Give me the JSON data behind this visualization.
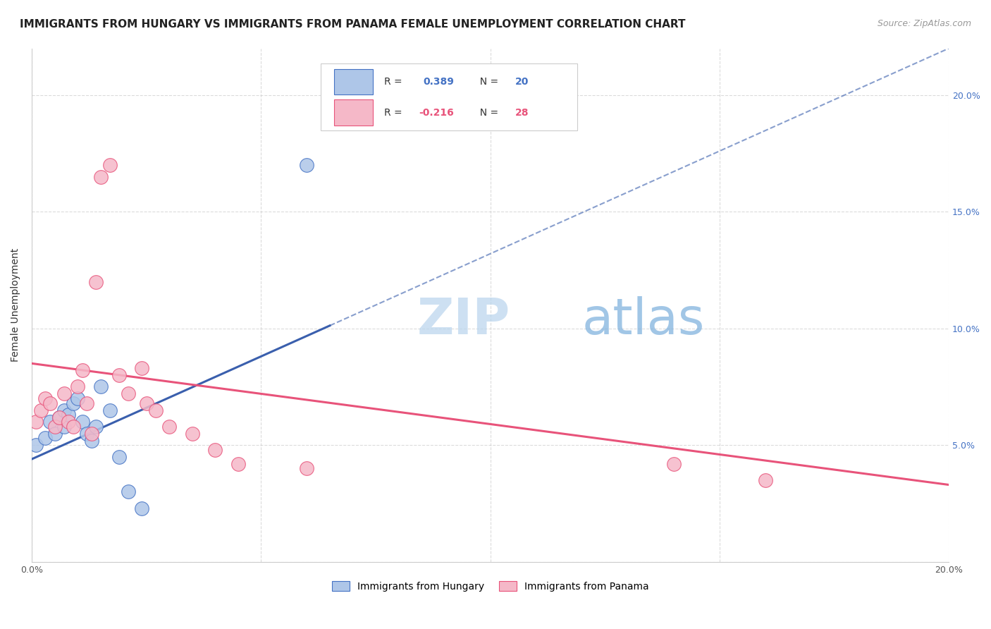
{
  "title": "IMMIGRANTS FROM HUNGARY VS IMMIGRANTS FROM PANAMA FEMALE UNEMPLOYMENT CORRELATION CHART",
  "source": "Source: ZipAtlas.com",
  "ylabel": "Female Unemployment",
  "xlim": [
    0.0,
    0.2
  ],
  "ylim": [
    0.0,
    0.22
  ],
  "hungary_color": "#aec6e8",
  "panama_color": "#f5b8c8",
  "hungary_edge_color": "#4472c4",
  "panama_edge_color": "#e8537a",
  "hungary_line_color": "#3a5fad",
  "panama_line_color": "#e8537a",
  "watermark_color": "#cce0f5",
  "hungary_x": [
    0.001,
    0.003,
    0.004,
    0.005,
    0.006,
    0.007,
    0.007,
    0.008,
    0.009,
    0.01,
    0.011,
    0.012,
    0.013,
    0.014,
    0.015,
    0.017,
    0.019,
    0.021,
    0.024,
    0.06
  ],
  "hungary_y": [
    0.05,
    0.053,
    0.06,
    0.055,
    0.062,
    0.058,
    0.065,
    0.063,
    0.068,
    0.07,
    0.06,
    0.055,
    0.052,
    0.058,
    0.075,
    0.065,
    0.045,
    0.03,
    0.023,
    0.17
  ],
  "panama_x": [
    0.001,
    0.002,
    0.003,
    0.004,
    0.005,
    0.006,
    0.007,
    0.008,
    0.009,
    0.01,
    0.011,
    0.012,
    0.013,
    0.014,
    0.015,
    0.017,
    0.019,
    0.021,
    0.024,
    0.025,
    0.027,
    0.03,
    0.035,
    0.04,
    0.045,
    0.06,
    0.14,
    0.16
  ],
  "panama_y": [
    0.06,
    0.065,
    0.07,
    0.068,
    0.058,
    0.062,
    0.072,
    0.06,
    0.058,
    0.075,
    0.082,
    0.068,
    0.055,
    0.12,
    0.165,
    0.17,
    0.08,
    0.072,
    0.083,
    0.068,
    0.065,
    0.058,
    0.055,
    0.048,
    0.042,
    0.04,
    0.042,
    0.035
  ],
  "title_fontsize": 11,
  "source_fontsize": 9,
  "axis_label_fontsize": 10,
  "tick_fontsize": 9
}
